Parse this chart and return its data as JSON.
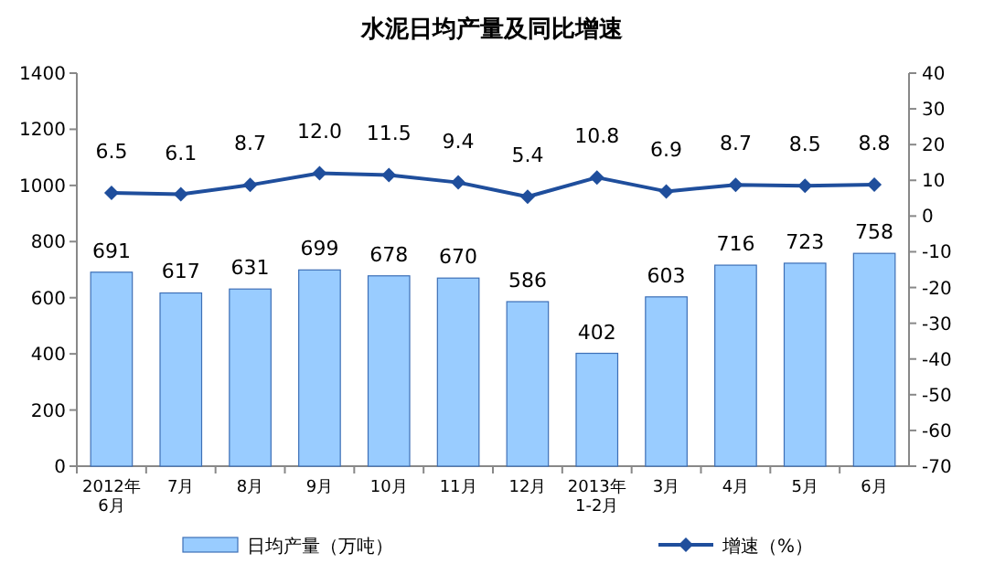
{
  "chart_data": {
    "type": "bar",
    "title": "水泥日均产量及同比增速",
    "categories": [
      "2012年\n6月",
      "7月",
      "8月",
      "9月",
      "10月",
      "11月",
      "12月",
      "2013年\n1-2月",
      "3月",
      "4月",
      "5月",
      "6月"
    ],
    "series": [
      {
        "name": "日均产量（万吨）",
        "color": "#99ccff",
        "values": [
          691,
          617,
          631,
          699,
          678,
          670,
          586,
          402,
          603,
          716,
          723,
          758
        ],
        "value_labels": [
          "691",
          "617",
          "631",
          "699",
          "678",
          "670",
          "586",
          "402",
          "603",
          "716",
          "723",
          "758"
        ]
      },
      {
        "name": "增速（%）",
        "type": "line",
        "axis": "y2",
        "color": "#1f4e9c",
        "marker": "diamond",
        "values": [
          6.5,
          6.1,
          8.7,
          12.0,
          11.5,
          9.4,
          5.4,
          10.8,
          6.9,
          8.7,
          8.5,
          8.8
        ],
        "value_labels": [
          "6.5",
          "6.1",
          "8.7",
          "12.0",
          "11.5",
          "9.4",
          "5.4",
          "10.8",
          "6.9",
          "8.7",
          "8.5",
          "8.8"
        ]
      }
    ],
    "ylim": [
      0,
      1400
    ],
    "yticks": [
      0,
      200,
      400,
      600,
      800,
      1000,
      1200,
      1400
    ],
    "y2lim": [
      -70,
      40
    ],
    "y2ticks": [
      -70,
      -60,
      -50,
      -40,
      -30,
      -20,
      -10,
      0,
      10,
      20,
      30,
      40
    ],
    "legend": "bottom",
    "grid": false
  }
}
